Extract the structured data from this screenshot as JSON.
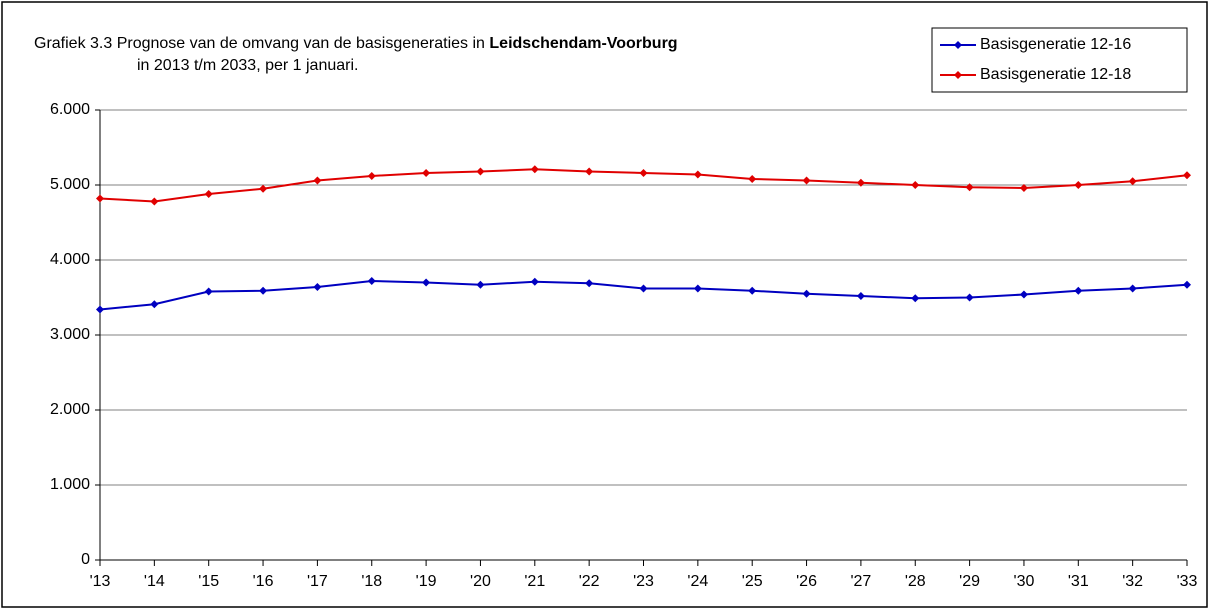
{
  "chart_data": {
    "type": "line",
    "title": "Grafiek 3.3 Prognose van de omvang van de basisgeneraties in",
    "title_bold": "Leidschendam-Voorburg",
    "subtitle": "in 2013 t/m 2033, per 1 januari.",
    "categories": [
      "'13",
      "'14",
      "'15",
      "'16",
      "'17",
      "'18",
      "'19",
      "'20",
      "'21",
      "'22",
      "'23",
      "'24",
      "'25",
      "'26",
      "'27",
      "'28",
      "'29",
      "'30",
      "'31",
      "'32",
      "'33"
    ],
    "series": [
      {
        "name": "Basisgeneratie 12-16",
        "color": "#0000c0",
        "values": [
          3340,
          3410,
          3580,
          3590,
          3640,
          3720,
          3700,
          3670,
          3710,
          3690,
          3620,
          3620,
          3590,
          3550,
          3520,
          3490,
          3500,
          3540,
          3590,
          3620,
          3670
        ]
      },
      {
        "name": "Basisgeneratie 12-18",
        "color": "#e00000",
        "values": [
          4820,
          4780,
          4880,
          4950,
          5060,
          5120,
          5160,
          5180,
          5210,
          5180,
          5160,
          5140,
          5080,
          5060,
          5030,
          5000,
          4970,
          4960,
          5000,
          5050,
          5130
        ]
      }
    ],
    "ylim": [
      0,
      6000
    ],
    "yticks": [
      0,
      {
        "value": 1000,
        "label": "1.000"
      },
      {
        "value": 2000,
        "label": "2.000"
      },
      {
        "value": 3000,
        "label": "3.000"
      },
      {
        "value": 4000,
        "label": "4.000"
      },
      {
        "value": 5000,
        "label": "5.000"
      },
      {
        "value": 6000,
        "label": "6.000"
      }
    ],
    "grid": true,
    "legend": "top-right"
  }
}
